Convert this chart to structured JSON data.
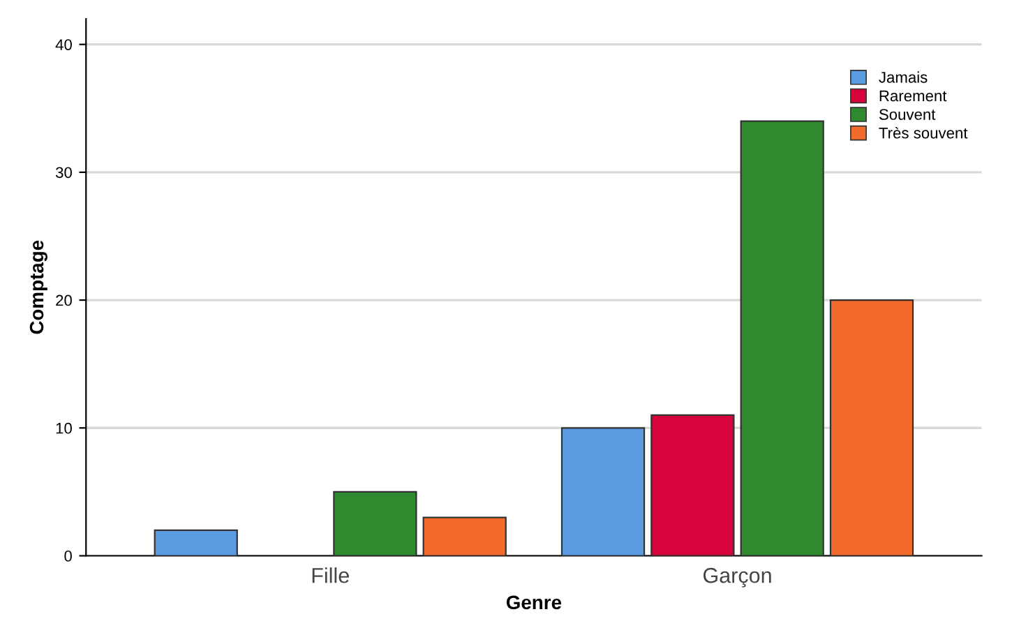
{
  "chart_data": {
    "type": "bar",
    "xlabel": "Genre",
    "ylabel": "Comptage",
    "categories": [
      "Fille",
      "Garçon"
    ],
    "series": [
      {
        "name": "Jamais",
        "color": "#5a9be2",
        "values": [
          2,
          10
        ]
      },
      {
        "name": "Rarement",
        "color": "#d6043a",
        "values": [
          null,
          11
        ]
      },
      {
        "name": "Souvent",
        "color": "#2f8a2f",
        "values": [
          5,
          34
        ]
      },
      {
        "name": "Très souvent",
        "color": "#f26b2c",
        "values": [
          3,
          20
        ]
      }
    ],
    "ylim": [
      0,
      42
    ],
    "yticks": [
      0,
      10,
      20,
      30,
      40
    ],
    "grid": "y",
    "legend": "top right"
  }
}
